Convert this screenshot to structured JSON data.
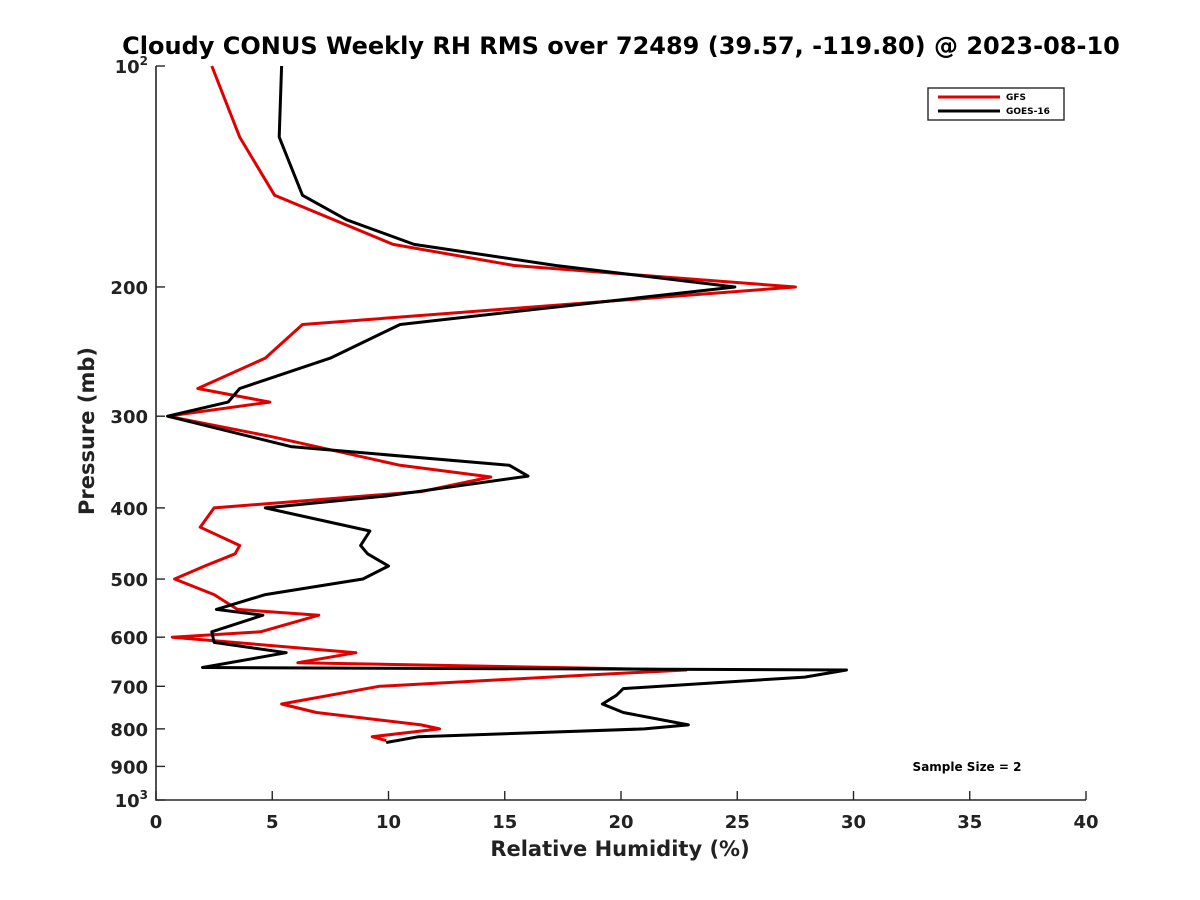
{
  "chart_data": {
    "type": "line",
    "title": "Cloudy CONUS Weekly RH RMS over 72489 (39.57, -119.80) @ 2023-08-10",
    "xlabel": "Relative Humidity (%)",
    "ylabel": "Pressure (mb)",
    "xlim": [
      0,
      40
    ],
    "ylim": [
      100,
      1000
    ],
    "y_scale": "log",
    "y_reversed": true,
    "grid": false,
    "legend_position": "top-right",
    "x_ticks": [
      0,
      5,
      10,
      15,
      20,
      25,
      30,
      35,
      40
    ],
    "y_ticks": [
      {
        "value": 100,
        "base": "10",
        "exp": "2"
      },
      {
        "value": 200,
        "label": "200"
      },
      {
        "value": 300,
        "label": "300"
      },
      {
        "value": 400,
        "label": "400"
      },
      {
        "value": 500,
        "label": "500"
      },
      {
        "value": 600,
        "label": "600"
      },
      {
        "value": 700,
        "label": "700"
      },
      {
        "value": 800,
        "label": "800"
      },
      {
        "value": 900,
        "label": "900"
      },
      {
        "value": 1000,
        "base": "10",
        "exp": "3"
      }
    ],
    "series": [
      {
        "name": "GFS",
        "color": "#e00000",
        "points": [
          [
            2.4,
            100
          ],
          [
            3.6,
            125
          ],
          [
            5.1,
            150
          ],
          [
            10.2,
            175
          ],
          [
            15.4,
            187
          ],
          [
            27.5,
            200
          ],
          [
            6.3,
            225
          ],
          [
            4.7,
            250
          ],
          [
            1.8,
            275
          ],
          [
            4.9,
            287
          ],
          [
            0.5,
            300
          ],
          [
            5.0,
            320
          ],
          [
            10.5,
            350
          ],
          [
            14.4,
            363
          ],
          [
            11.4,
            380
          ],
          [
            2.5,
            400
          ],
          [
            1.9,
            425
          ],
          [
            3.6,
            450
          ],
          [
            3.4,
            462
          ],
          [
            2.1,
            480
          ],
          [
            0.8,
            500
          ],
          [
            2.5,
            525
          ],
          [
            3.5,
            550
          ],
          [
            7.0,
            560
          ],
          [
            4.5,
            590
          ],
          [
            0.7,
            600
          ],
          [
            8.6,
            630
          ],
          [
            6.1,
            650
          ],
          [
            22.8,
            665
          ],
          [
            18.8,
            675
          ],
          [
            9.6,
            700
          ],
          [
            5.4,
            740
          ],
          [
            6.9,
            760
          ],
          [
            11.4,
            790
          ],
          [
            12.2,
            800
          ],
          [
            9.3,
            820
          ],
          [
            9.9,
            830
          ]
        ]
      },
      {
        "name": "GOES-16",
        "color": "#000000",
        "points": [
          [
            5.4,
            100
          ],
          [
            5.3,
            125
          ],
          [
            6.3,
            150
          ],
          [
            8.2,
            162
          ],
          [
            11.1,
            175
          ],
          [
            17.2,
            187
          ],
          [
            24.9,
            200
          ],
          [
            10.5,
            225
          ],
          [
            7.5,
            250
          ],
          [
            3.6,
            275
          ],
          [
            3.1,
            287
          ],
          [
            0.5,
            300
          ],
          [
            5.8,
            330
          ],
          [
            15.2,
            350
          ],
          [
            16.0,
            362
          ],
          [
            10.0,
            385
          ],
          [
            4.7,
            400
          ],
          [
            9.2,
            430
          ],
          [
            8.8,
            450
          ],
          [
            9.1,
            462
          ],
          [
            10.0,
            480
          ],
          [
            8.9,
            500
          ],
          [
            4.7,
            525
          ],
          [
            2.6,
            550
          ],
          [
            4.6,
            560
          ],
          [
            2.4,
            590
          ],
          [
            2.5,
            610
          ],
          [
            5.6,
            630
          ],
          [
            2.0,
            660
          ],
          [
            29.7,
            665
          ],
          [
            27.9,
            680
          ],
          [
            20.1,
            705
          ],
          [
            19.8,
            720
          ],
          [
            19.2,
            740
          ],
          [
            20.1,
            760
          ],
          [
            22.9,
            790
          ],
          [
            21.0,
            800
          ],
          [
            11.3,
            820
          ],
          [
            9.9,
            835
          ]
        ]
      }
    ],
    "annotation": "Sample Size = 2"
  }
}
